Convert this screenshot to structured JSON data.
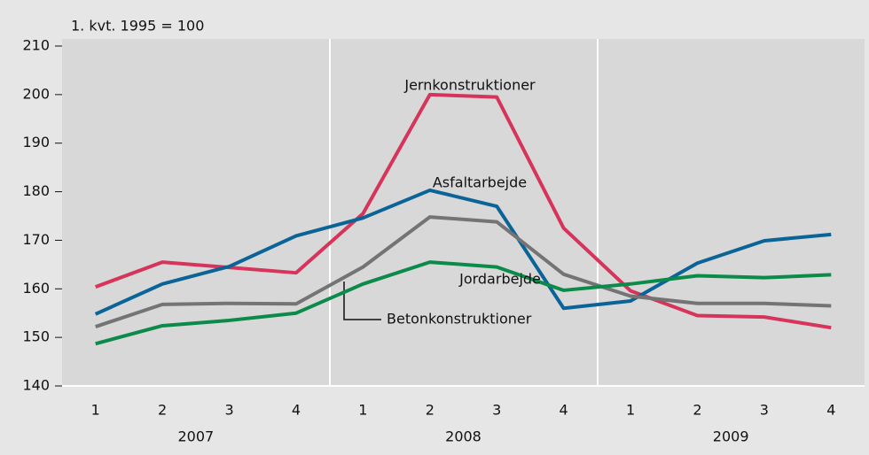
{
  "chart_data": {
    "type": "line",
    "ylabel": "1. kvt. 1995 = 100",
    "categories": [
      "1",
      "2",
      "3",
      "4",
      "1",
      "2",
      "3",
      "4",
      "1",
      "2",
      "3",
      "4"
    ],
    "year_labels": [
      "2007",
      "2008",
      "2009"
    ],
    "series": [
      {
        "name": "Jernkonstruktioner",
        "color": "#d6345a",
        "values": [
          160.4,
          165.5,
          164.4,
          163.3,
          175.5,
          200,
          199.5,
          172.5,
          159.6,
          154.5,
          154.2,
          152
        ]
      },
      {
        "name": "Asfaltarbejde",
        "color": "#0b6497",
        "values": [
          154.8,
          161,
          164.6,
          170.9,
          174.6,
          180.3,
          177,
          156,
          157.5,
          165.3,
          169.9,
          171.2
        ]
      },
      {
        "name": "Betonkonstruktioner",
        "color": "#747474",
        "values": [
          152.2,
          156.8,
          157,
          156.9,
          164.5,
          174.8,
          173.8,
          163,
          158.5,
          157,
          157,
          156.5
        ]
      },
      {
        "name": "Jordarbejde",
        "color": "#0b8a4a",
        "values": [
          148.7,
          152.4,
          153.5,
          155,
          161,
          165.5,
          164.5,
          159.7,
          161,
          162.7,
          162.3,
          162.9
        ]
      }
    ],
    "ylim": [
      140,
      210
    ],
    "yticks": [
      140,
      150,
      160,
      170,
      180,
      190,
      200,
      210
    ]
  }
}
